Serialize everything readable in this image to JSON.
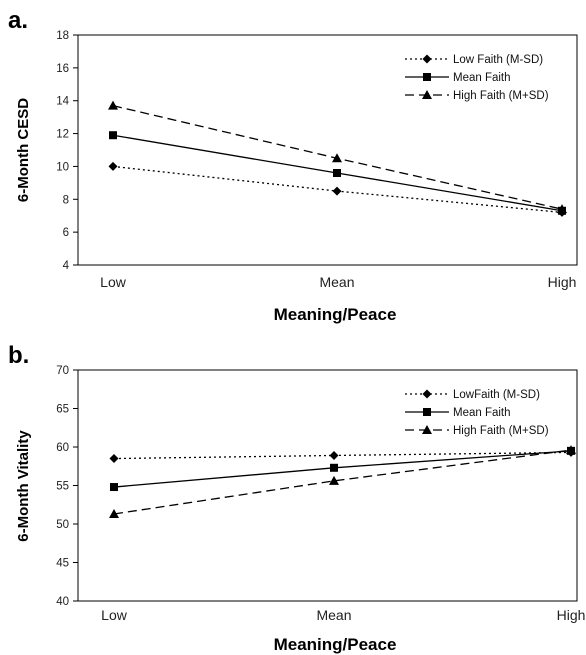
{
  "style": {
    "line_color": "#000000",
    "axis_color": "#000000",
    "background": "#ffffff"
  },
  "chart_data": [
    {
      "type": "line",
      "panel_label": "a.",
      "title": "",
      "xlabel": "Meaning/Peace",
      "ylabel": "6-Month CESD",
      "categories": [
        "Low",
        "Mean",
        "High"
      ],
      "ylim": [
        4,
        18
      ],
      "yticks": [
        4,
        6,
        8,
        10,
        12,
        14,
        16,
        18
      ],
      "grid": false,
      "legend_position": "top-right",
      "series": [
        {
          "name": "Low Faith (M-SD)",
          "values": [
            10.0,
            8.5,
            7.2
          ],
          "marker": "diamond-icon",
          "dash": "dotted"
        },
        {
          "name": "Mean Faith",
          "values": [
            11.9,
            9.6,
            7.3
          ],
          "marker": "square-icon",
          "dash": "solid"
        },
        {
          "name": "High Faith (M+SD)",
          "values": [
            13.7,
            10.5,
            7.4
          ],
          "marker": "triangle-icon",
          "dash": "dashed"
        }
      ]
    },
    {
      "type": "line",
      "panel_label": "b.",
      "title": "",
      "xlabel": "Meaning/Peace",
      "ylabel": "6-Month Vitality",
      "categories": [
        "Low",
        "Mean",
        "High"
      ],
      "ylim": [
        40,
        70
      ],
      "yticks": [
        40,
        45,
        50,
        55,
        60,
        65,
        70
      ],
      "grid": false,
      "legend_position": "top-right",
      "series": [
        {
          "name": "LowFaith (M-SD)",
          "values": [
            58.5,
            58.9,
            59.3
          ],
          "marker": "diamond-icon",
          "dash": "dotted"
        },
        {
          "name": "Mean Faith",
          "values": [
            54.8,
            57.3,
            59.5
          ],
          "marker": "square-icon",
          "dash": "solid"
        },
        {
          "name": "High Faith (M+SD)",
          "values": [
            51.3,
            55.6,
            59.6
          ],
          "marker": "triangle-icon",
          "dash": "dashed"
        }
      ]
    }
  ]
}
